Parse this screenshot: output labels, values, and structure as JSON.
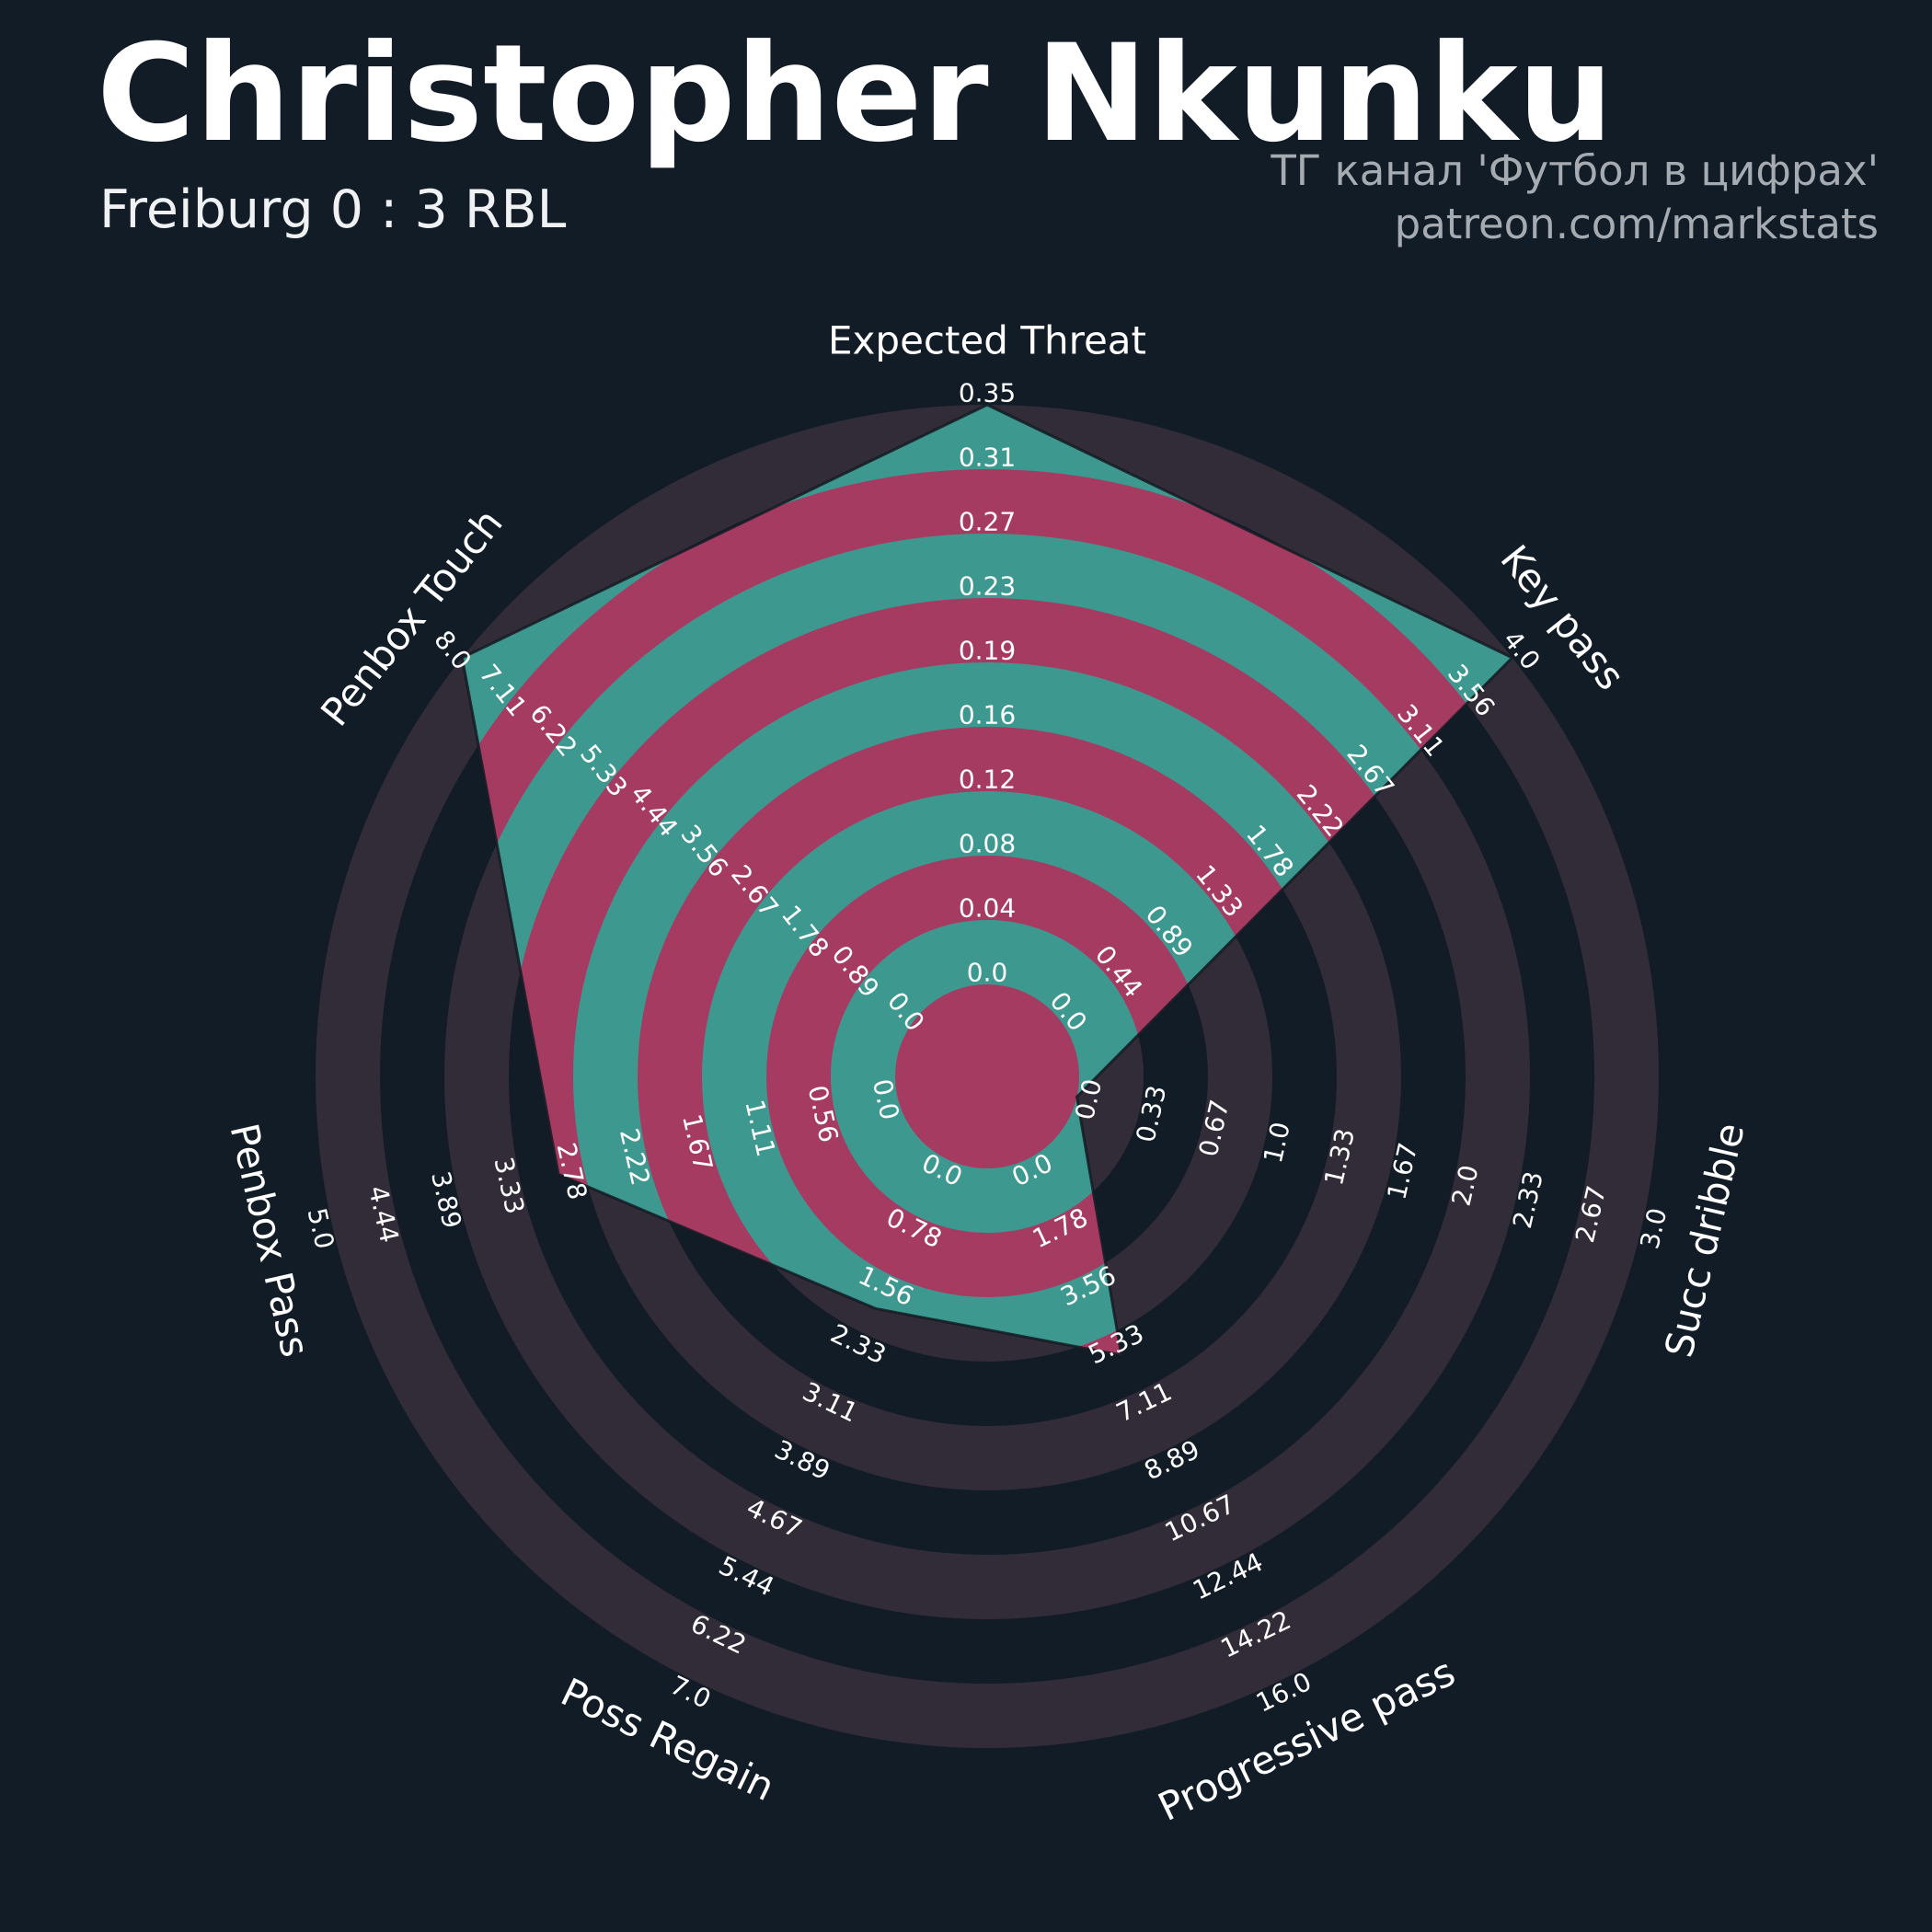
{
  "header": {
    "title": "Christopher Nkunku",
    "subtitle": "Freiburg 0 : 3 RBL",
    "credit_line1": "ТГ канал 'Футбол в цифрах'",
    "credit_line2": "patreon.com/markstats"
  },
  "colors": {
    "background": "#111C27",
    "ring_outer": "#322C38",
    "radar_fill": "#3D9990",
    "ring_inner": "#A63B62",
    "radar_edge": "#141B23",
    "tick_text": "#FFFFFF",
    "title_text": "#FFFFFF",
    "subtitle_text": "#EFF1F2",
    "credit_text": "#A6ABB1"
  },
  "chart_data": {
    "type": "radar",
    "title": "Christopher Nkunku",
    "subtitle": "Freiburg 0 : 3 RBL",
    "legend_position": "none",
    "grid": "concentric-rings",
    "num_rings": 9,
    "params": [
      {
        "label": "Expected Threat",
        "value": 0.35,
        "min": 0.0,
        "max": 0.35,
        "ticks": [
          "0.0",
          "0.04",
          "0.08",
          "0.12",
          "0.16",
          "0.19",
          "0.23",
          "0.27",
          "0.31",
          "0.35"
        ]
      },
      {
        "label": "Key pass",
        "value": 4.0,
        "min": 0.0,
        "max": 4.0,
        "ticks": [
          "0.0",
          "0.44",
          "0.89",
          "1.33",
          "1.78",
          "2.22",
          "2.67",
          "3.11",
          "3.56",
          "4.0"
        ]
      },
      {
        "label": "Succ dribble",
        "value": 0.0,
        "min": 0.0,
        "max": 3.0,
        "ticks": [
          "0.0",
          "0.33",
          "0.67",
          "1.0",
          "1.33",
          "1.67",
          "2.0",
          "2.33",
          "2.67",
          "3.0"
        ]
      },
      {
        "label": "Progressive pass",
        "value": 6.0,
        "min": 0.0,
        "max": 16.0,
        "ticks": [
          "0.0",
          "1.78",
          "3.56",
          "5.33",
          "7.11",
          "8.89",
          "10.67",
          "12.44",
          "14.22",
          "16.0"
        ]
      },
      {
        "label": "Poss Regain",
        "value": 2.0,
        "min": 0.0,
        "max": 7.0,
        "ticks": [
          "0.0",
          "0.78",
          "1.56",
          "2.33",
          "3.11",
          "3.89",
          "4.67",
          "5.44",
          "6.22",
          "7.0"
        ]
      },
      {
        "label": "Penbox Pass",
        "value": 3.0,
        "min": 0.0,
        "max": 5.0,
        "ticks": [
          "0.0",
          "0.56",
          "1.11",
          "1.67",
          "2.22",
          "2.78",
          "3.33",
          "3.89",
          "4.44",
          "5.0"
        ]
      },
      {
        "label": "Penbox Touch",
        "value": 8.0,
        "min": 0.0,
        "max": 8.0,
        "ticks": [
          "0.0",
          "0.89",
          "1.78",
          "2.67",
          "3.56",
          "4.44",
          "5.33",
          "6.22",
          "7.11",
          "8.0"
        ]
      }
    ]
  }
}
